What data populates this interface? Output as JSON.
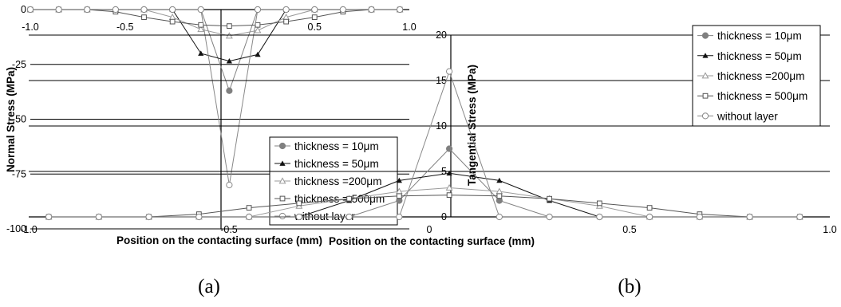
{
  "figure": {
    "panels": [
      {
        "label": "(a)"
      },
      {
        "label": "(b)"
      }
    ]
  },
  "chart_data": [
    {
      "type": "line",
      "xlabel": "Position on the contacting surface (mm)",
      "ylabel": "Normal Stress (MPa)",
      "xlim": [
        -1.0,
        1.0
      ],
      "ylim": [
        -100,
        0
      ],
      "x_ticks": [
        "-1.0",
        "-0.5",
        "0.5",
        "1.0"
      ],
      "y_ticks": [
        "0",
        "-25",
        "-50",
        "-75",
        "-100"
      ],
      "gridlines": "horizontal",
      "legend_position": "bottom-right",
      "series": [
        {
          "name": "thickness = 10μm",
          "color": "#808080",
          "marker": "filled-circle",
          "x": [
            -1.0,
            -0.85,
            -0.7,
            -0.55,
            -0.4,
            -0.25,
            -0.1,
            0.05,
            0.2,
            0.35,
            0.5,
            0.65,
            0.8,
            0.95
          ],
          "y": [
            0,
            0,
            0,
            0,
            0,
            0,
            0,
            -37,
            0,
            0,
            0,
            0,
            0,
            0
          ]
        },
        {
          "name": "thickness = 50μm",
          "color": "#111111",
          "marker": "filled-triangle",
          "x": [
            -1.0,
            -0.85,
            -0.7,
            -0.55,
            -0.4,
            -0.25,
            -0.1,
            0.05,
            0.2,
            0.35,
            0.5,
            0.65,
            0.8,
            0.95
          ],
          "y": [
            0,
            0,
            0,
            0,
            0,
            0,
            -20,
            -23.5,
            -20.5,
            0,
            0,
            0,
            0,
            0
          ]
        },
        {
          "name": "thickness =200μm",
          "color": "#9a9a9a",
          "marker": "open-triangle",
          "x": [
            -1.0,
            -0.85,
            -0.7,
            -0.55,
            -0.4,
            -0.25,
            -0.1,
            0.05,
            0.2,
            0.35,
            0.5,
            0.65,
            0.8,
            0.95
          ],
          "y": [
            0,
            0,
            0,
            0,
            0,
            -3.5,
            -9,
            -12,
            -9.5,
            -3.5,
            0,
            0,
            0,
            0
          ]
        },
        {
          "name": "thickness = 500μm",
          "color": "#555555",
          "marker": "open-square",
          "x": [
            -1.0,
            -0.85,
            -0.7,
            -0.55,
            -0.4,
            -0.25,
            -0.1,
            0.05,
            0.2,
            0.35,
            0.5,
            0.65,
            0.8,
            0.95
          ],
          "y": [
            0,
            0,
            0,
            -1,
            -3.5,
            -5.5,
            -7,
            -7.5,
            -7,
            -5.5,
            -3.5,
            -1,
            0,
            0
          ]
        },
        {
          "name": "without layer",
          "color": "#888888",
          "marker": "open-circle",
          "x": [
            -1.0,
            -0.85,
            -0.7,
            -0.55,
            -0.4,
            -0.25,
            -0.1,
            0.05,
            0.2,
            0.35,
            0.5,
            0.65,
            0.8,
            0.95
          ],
          "y": [
            0,
            0,
            0,
            0,
            0,
            0,
            0,
            -80,
            0,
            0,
            0,
            0,
            0,
            0
          ]
        }
      ]
    },
    {
      "type": "line",
      "xlabel": "Position on the contacting surface (mm)",
      "ylabel": "Tangential Stress (MPa)",
      "xlim": [
        -1.0,
        1.0
      ],
      "ylim": [
        0,
        20
      ],
      "x_ticks": [
        "-1.0",
        "-0.5",
        "0",
        "0.5",
        "1.0"
      ],
      "y_ticks": [
        "0",
        "5",
        "10",
        "15",
        "20"
      ],
      "gridlines": "horizontal",
      "legend_position": "top-right",
      "series": [
        {
          "name": "thickness = 10μm",
          "color": "#808080",
          "marker": "filled-circle",
          "x": [
            -0.95,
            -0.825,
            -0.7,
            -0.575,
            -0.45,
            -0.325,
            -0.2,
            -0.075,
            0.05,
            0.175,
            0.3,
            0.425,
            0.55,
            0.675,
            0.8,
            0.925
          ],
          "y": [
            0,
            0,
            0,
            0,
            0,
            0,
            0,
            1.8,
            7.5,
            1.8,
            0,
            0,
            0,
            0,
            0,
            0
          ]
        },
        {
          "name": "thickness = 50μm",
          "color": "#111111",
          "marker": "filled-triangle",
          "x": [
            -0.95,
            -0.825,
            -0.7,
            -0.575,
            -0.45,
            -0.325,
            -0.2,
            -0.075,
            0.05,
            0.175,
            0.3,
            0.425,
            0.55,
            0.675,
            0.8,
            0.925
          ],
          "y": [
            0,
            0,
            0,
            0,
            0,
            0,
            1.8,
            4.0,
            4.8,
            4.0,
            1.8,
            0,
            0,
            0,
            0,
            0
          ]
        },
        {
          "name": "thickness =200μm",
          "color": "#9a9a9a",
          "marker": "open-triangle",
          "x": [
            -0.95,
            -0.825,
            -0.7,
            -0.575,
            -0.45,
            -0.325,
            -0.2,
            -0.075,
            0.05,
            0.175,
            0.3,
            0.425,
            0.55,
            0.675,
            0.8,
            0.925
          ],
          "y": [
            0,
            0,
            0,
            0,
            0,
            1.2,
            2.0,
            2.8,
            3.2,
            2.8,
            2.0,
            1.2,
            0,
            0,
            0,
            0
          ]
        },
        {
          "name": "thickness = 500μm",
          "color": "#555555",
          "marker": "open-square",
          "x": [
            -0.95,
            -0.825,
            -0.7,
            -0.575,
            -0.45,
            -0.325,
            -0.2,
            -0.075,
            0.05,
            0.175,
            0.3,
            0.425,
            0.55,
            0.675,
            0.8,
            0.925
          ],
          "y": [
            0,
            0,
            0,
            0.3,
            1.0,
            1.5,
            2.0,
            2.3,
            2.4,
            2.3,
            2.0,
            1.5,
            1.0,
            0.3,
            0,
            0
          ]
        },
        {
          "name": "without layer",
          "color": "#888888",
          "marker": "open-circle",
          "x": [
            -0.95,
            -0.825,
            -0.7,
            -0.575,
            -0.45,
            -0.325,
            -0.2,
            -0.075,
            0.05,
            0.175,
            0.3,
            0.425,
            0.55,
            0.675,
            0.8,
            0.925
          ],
          "y": [
            0,
            0,
            0,
            0,
            0,
            0,
            0,
            0,
            16.0,
            0,
            0,
            0,
            0,
            0,
            0,
            0
          ]
        }
      ]
    }
  ]
}
